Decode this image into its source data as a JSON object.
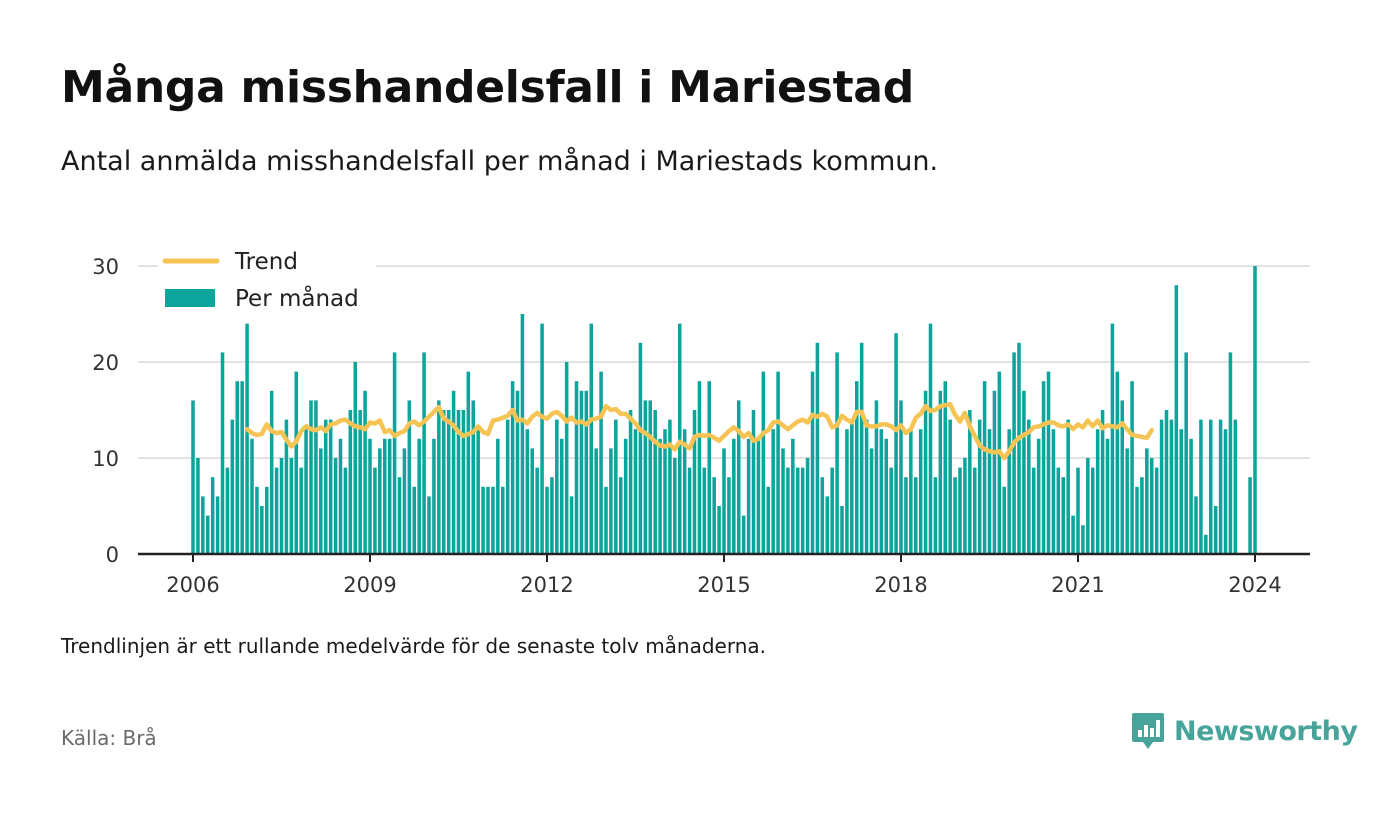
{
  "header": {
    "title": "Många misshandelsfall i Mariestad",
    "subtitle": "Antal anmälda misshandelsfall per månad i Mariestads kommun."
  },
  "footer": {
    "note": "Trendlinjen är ett rullande medelvärde för de senaste tolv månaderna.",
    "source": "Källa: Brå",
    "brand": "Newsworthy"
  },
  "colors": {
    "bars": "#0da49b",
    "trend": "#f5c454",
    "grid": "#d8d8d8",
    "axis": "#222222",
    "brand": "#48a49a"
  },
  "chart_data": {
    "type": "bar",
    "x_start": "2006-01",
    "frequency": "monthly",
    "x_ticks": [
      "2006",
      "2009",
      "2012",
      "2015",
      "2018",
      "2021",
      "2024"
    ],
    "y_ticks": [
      0,
      10,
      20,
      30
    ],
    "ylim": [
      0,
      30
    ],
    "grid": true,
    "legend_position": "top-left",
    "series": [
      {
        "name": "Per månad",
        "kind": "bar",
        "values": [
          16,
          10,
          6,
          4,
          8,
          6,
          21,
          9,
          14,
          18,
          18,
          24,
          12,
          7,
          5,
          7,
          17,
          9,
          10,
          14,
          10,
          19,
          9,
          13,
          16,
          16,
          11,
          14,
          14,
          10,
          12,
          9,
          15,
          20,
          15,
          17,
          12,
          9,
          11,
          12,
          12,
          21,
          8,
          11,
          16,
          7,
          12,
          21,
          6,
          12,
          16,
          15,
          15,
          17,
          15,
          15,
          19,
          16,
          13,
          7,
          7,
          7,
          12,
          7,
          14,
          18,
          17,
          25,
          13,
          11,
          9,
          24,
          7,
          8,
          14,
          12,
          20,
          6,
          18,
          17,
          17,
          24,
          11,
          19,
          7,
          11,
          14,
          8,
          12,
          15,
          13,
          22,
          16,
          16,
          15,
          12,
          13,
          14,
          10,
          24,
          13,
          9,
          15,
          18,
          9,
          18,
          8,
          5,
          11,
          8,
          12,
          16,
          4,
          12,
          15,
          12,
          19,
          7,
          13,
          19,
          11,
          9,
          12,
          9,
          9,
          10,
          19,
          22,
          8,
          6,
          9,
          21,
          5,
          13,
          14,
          18,
          22,
          14,
          11,
          16,
          13,
          12,
          9,
          23,
          16,
          8,
          13,
          8,
          13,
          17,
          24,
          8,
          17,
          18,
          14,
          8,
          9,
          10,
          15,
          9,
          14,
          18,
          13,
          17,
          19,
          7,
          13,
          21,
          22,
          17,
          14,
          9,
          12,
          18,
          19,
          13,
          9,
          8,
          14,
          4,
          9,
          3,
          10,
          9,
          13,
          15,
          12,
          24,
          19,
          16,
          11,
          18,
          7,
          8,
          11,
          10,
          9,
          14,
          15,
          14,
          28,
          13,
          21,
          12,
          6,
          14,
          2,
          14,
          5,
          14,
          13,
          21,
          14,
          0,
          0,
          8,
          30
        ],
        "color": "#0da49b"
      },
      {
        "name": "Trend",
        "kind": "line",
        "start": "2006-12",
        "values": [
          13.0,
          12.6,
          12.4,
          12.5,
          13.5,
          12.8,
          12.6,
          12.7,
          11.9,
          11.2,
          11.7,
          12.8,
          13.3,
          13.0,
          12.9,
          13.2,
          12.8,
          13.5,
          13.6,
          13.9,
          14.0,
          13.6,
          13.3,
          13.2,
          13.0,
          13.7,
          13.6,
          13.9,
          12.7,
          12.9,
          12.3,
          12.6,
          12.8,
          13.6,
          13.8,
          13.4,
          13.8,
          14.3,
          14.8,
          15.3,
          14.1,
          13.8,
          13.4,
          12.7,
          12.3,
          12.5,
          12.7,
          13.3,
          12.7,
          12.5,
          13.9,
          14.0,
          14.2,
          14.4,
          15.0,
          13.9,
          14.0,
          13.6,
          14.3,
          14.7,
          14.3,
          14.1,
          14.6,
          14.8,
          14.4,
          13.8,
          14.2,
          13.7,
          13.8,
          13.5,
          14.0,
          14.1,
          14.3,
          15.4,
          15.0,
          15.1,
          14.6,
          14.6,
          14.1,
          13.6,
          12.9,
          12.6,
          12.2,
          11.7,
          11.3,
          11.2,
          11.4,
          10.9,
          11.7,
          11.4,
          11.0,
          12.2,
          12.4,
          12.3,
          12.4,
          12.1,
          11.8,
          12.3,
          12.8,
          13.2,
          12.8,
          12.2,
          12.6,
          11.8,
          12.0,
          12.6,
          12.9,
          13.7,
          13.8,
          13.4,
          13.0,
          13.4,
          13.8,
          14.0,
          13.7,
          14.5,
          14.3,
          14.6,
          14.3,
          13.2,
          13.4,
          14.4,
          14.0,
          13.7,
          14.8,
          14.8,
          13.4,
          13.3,
          13.3,
          13.5,
          13.5,
          13.3,
          12.9,
          13.4,
          12.6,
          13.0,
          14.2,
          14.6,
          15.4,
          14.9,
          15.0,
          15.4,
          15.5,
          15.6,
          14.5,
          13.8,
          14.7,
          13.3,
          12.3,
          11.3,
          10.9,
          10.7,
          10.6,
          10.7,
          10.0,
          10.7,
          11.6,
          12.1,
          12.4,
          12.7,
          13.2,
          13.3,
          13.5,
          13.7,
          13.7,
          13.4,
          13.3,
          13.5,
          13.0,
          13.5,
          13.2,
          13.9,
          13.3,
          13.9,
          13.1,
          13.4,
          13.3,
          13.2,
          13.6,
          13.0,
          12.4,
          12.3,
          12.2,
          12.1,
          12.9
        ],
        "color": "#f5c454"
      }
    ]
  }
}
